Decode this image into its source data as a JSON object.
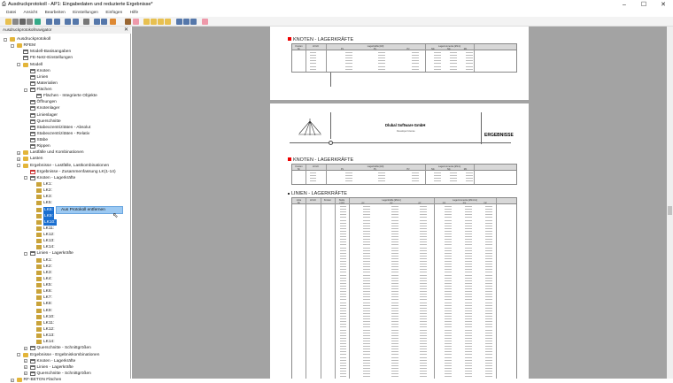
{
  "window": {
    "title": "Ausdruckprotokoll - AP1: Eingabedaten und reduzierte Ergebnisse*",
    "minimize": "–",
    "maximize": "☐",
    "close": "✕"
  },
  "menu": [
    "Datei",
    "Ansicht",
    "Bearbeiten",
    "Einstellungen",
    "Einfügen",
    "Hilfe"
  ],
  "navigator": {
    "title": "Ausdruckprotokollnavigator",
    "close": "✕",
    "items": [
      {
        "l": 0,
        "t": "Ausdruckprotokoll",
        "i": "folder",
        "e": "-"
      },
      {
        "l": 1,
        "t": "RFEM",
        "i": "folder",
        "e": "-"
      },
      {
        "l": 2,
        "t": "Modell-Basisangaben",
        "i": "page"
      },
      {
        "l": 2,
        "t": "FE-Netz-Einstellungen",
        "i": "page"
      },
      {
        "l": 2,
        "t": "Modell",
        "i": "folder",
        "e": "-"
      },
      {
        "l": 3,
        "t": "Knoten",
        "i": "page"
      },
      {
        "l": 3,
        "t": "Linien",
        "i": "page"
      },
      {
        "l": 3,
        "t": "Materialien",
        "i": "page"
      },
      {
        "l": 3,
        "t": "Flächen",
        "i": "page",
        "e": "-"
      },
      {
        "l": 4,
        "t": "Flächen - Integrierte Objekte",
        "i": "page"
      },
      {
        "l": 3,
        "t": "Öffnungen",
        "i": "page"
      },
      {
        "l": 3,
        "t": "Knotenlager",
        "i": "page"
      },
      {
        "l": 3,
        "t": "Linienlager",
        "i": "page"
      },
      {
        "l": 3,
        "t": "Querschnitte",
        "i": "page"
      },
      {
        "l": 3,
        "t": "Stabexzentrizitäten - Absolut",
        "i": "page"
      },
      {
        "l": 3,
        "t": "Stabexzentrizitäten - Relativ",
        "i": "page"
      },
      {
        "l": 3,
        "t": "Stäbe",
        "i": "page"
      },
      {
        "l": 3,
        "t": "Rippen",
        "i": "page"
      },
      {
        "l": 2,
        "t": "Lastfälle und Kombinationen",
        "i": "folder",
        "e": "+"
      },
      {
        "l": 2,
        "t": "Lasten",
        "i": "folder",
        "e": "+"
      },
      {
        "l": 2,
        "t": "Ergebnisse - Lastfälle, Lastkombinationen",
        "i": "folder",
        "e": "-"
      },
      {
        "l": 3,
        "t": "Ergebnisse - Zusammenfassung LK(1-14)",
        "i": "red"
      },
      {
        "l": 3,
        "t": "Knoten - Lagerkräfte",
        "i": "page",
        "e": "-"
      },
      {
        "l": 4,
        "t": "LK1:",
        "i": "lk"
      },
      {
        "l": 4,
        "t": "LK2:",
        "i": "lk"
      },
      {
        "l": 4,
        "t": "LK3:",
        "i": "lk"
      },
      {
        "l": 4,
        "t": "LK5:",
        "i": "lk"
      },
      {
        "l": 4,
        "t": "LK6:",
        "i": "lk",
        "s": true
      },
      {
        "l": 4,
        "t": "LK9:",
        "i": "lk",
        "s": true
      },
      {
        "l": 4,
        "t": "LK10:",
        "i": "lk",
        "s": true
      },
      {
        "l": 4,
        "t": "LK11:",
        "i": "lk"
      },
      {
        "l": 4,
        "t": "LK12:",
        "i": "lk"
      },
      {
        "l": 4,
        "t": "LK13:",
        "i": "lk"
      },
      {
        "l": 4,
        "t": "LK14:",
        "i": "lk"
      },
      {
        "l": 3,
        "t": "Linien - Lagerkräfte",
        "i": "page",
        "e": "-"
      },
      {
        "l": 4,
        "t": "LK1:",
        "i": "lk"
      },
      {
        "l": 4,
        "t": "LK2:",
        "i": "lk"
      },
      {
        "l": 4,
        "t": "LK3:",
        "i": "lk"
      },
      {
        "l": 4,
        "t": "LK4:",
        "i": "lk"
      },
      {
        "l": 4,
        "t": "LK5:",
        "i": "lk"
      },
      {
        "l": 4,
        "t": "LK6:",
        "i": "lk"
      },
      {
        "l": 4,
        "t": "LK7:",
        "i": "lk"
      },
      {
        "l": 4,
        "t": "LK8:",
        "i": "lk"
      },
      {
        "l": 4,
        "t": "LK9:",
        "i": "lk"
      },
      {
        "l": 4,
        "t": "LK10:",
        "i": "lk"
      },
      {
        "l": 4,
        "t": "LK11:",
        "i": "lk"
      },
      {
        "l": 4,
        "t": "LK12:",
        "i": "lk"
      },
      {
        "l": 4,
        "t": "LK13:",
        "i": "lk"
      },
      {
        "l": 4,
        "t": "LK14:",
        "i": "lk"
      },
      {
        "l": 3,
        "t": "Querschnitte - Schnittgrößen",
        "i": "page",
        "e": "+"
      },
      {
        "l": 2,
        "t": "Ergebnisse - Ergebniskombinationen",
        "i": "folder",
        "e": "-"
      },
      {
        "l": 3,
        "t": "Knoten - Lagerkräfte",
        "i": "page",
        "e": "+"
      },
      {
        "l": 3,
        "t": "Linien - Lagerkräfte",
        "i": "page",
        "e": "+"
      },
      {
        "l": 3,
        "t": "Querschnitte - Schnittgrößen",
        "i": "page",
        "e": "+"
      },
      {
        "l": 1,
        "t": "RF-BETON Flächen",
        "i": "folder",
        "e": "+"
      }
    ]
  },
  "context_menu": {
    "item": "Aus Protokoll entfernen"
  },
  "document": {
    "company": "Dlubal Software GmbH",
    "license": "Developer license",
    "header_badge": "ERGEBNISSE",
    "section_nodes": "KNOTEN - LAGERKRÄFTE",
    "section_lines": "LINIEN - LAGERKRÄFTE",
    "col_node": "Knoten",
    "col_line": "Linie",
    "col_nr": "Nr.",
    "col_lflk": "LF/LK",
    "col_knoten": "Knoten",
    "col_stelle": "Stelle",
    "col_x": "x [m]",
    "group_forces": "Lagerkräfte [kN]",
    "group_moments": "Lagermomente [kNm]",
    "group_forces_line": "Lagerkräfte [kN/m]",
    "group_moments_line": "Lagermomente [kNm/m]",
    "cols_f": [
      "Px",
      "Py",
      "Pz"
    ],
    "cols_m": [
      "Mx",
      "My",
      "Mz"
    ],
    "cols_fl": [
      "px",
      "py",
      "pz"
    ],
    "cols_ml": [
      "mx",
      "my",
      "mz"
    ]
  },
  "colors": {
    "accent_red": "#e00000",
    "selection": "#1a6fd0",
    "context_hover": "#9cc9f2",
    "workspace": "#a3a3a3"
  }
}
